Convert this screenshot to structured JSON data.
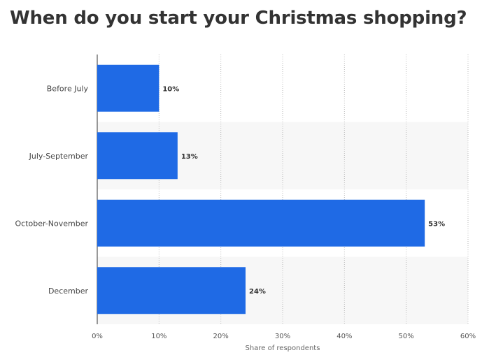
{
  "title": "When do you start your Christmas shopping?",
  "chart_data": {
    "type": "bar",
    "orientation": "horizontal",
    "title": "When do you start your Christmas shopping?",
    "categories": [
      "Before July",
      "July-September",
      "October-November",
      "December"
    ],
    "values": [
      10,
      13,
      53,
      24
    ],
    "value_labels": [
      "10%",
      "13%",
      "53%",
      "24%"
    ],
    "xlabel": "Share of respondents",
    "ylabel": "",
    "xlim": [
      0,
      60
    ],
    "x_ticks": [
      0,
      10,
      20,
      30,
      40,
      50,
      60
    ],
    "x_tick_labels": [
      "0%",
      "10%",
      "20%",
      "30%",
      "40%",
      "50%",
      "60%"
    ],
    "grid": "vertical dotted",
    "bar_color": "#1f6ae5",
    "band_color": "#f7f7f7"
  }
}
